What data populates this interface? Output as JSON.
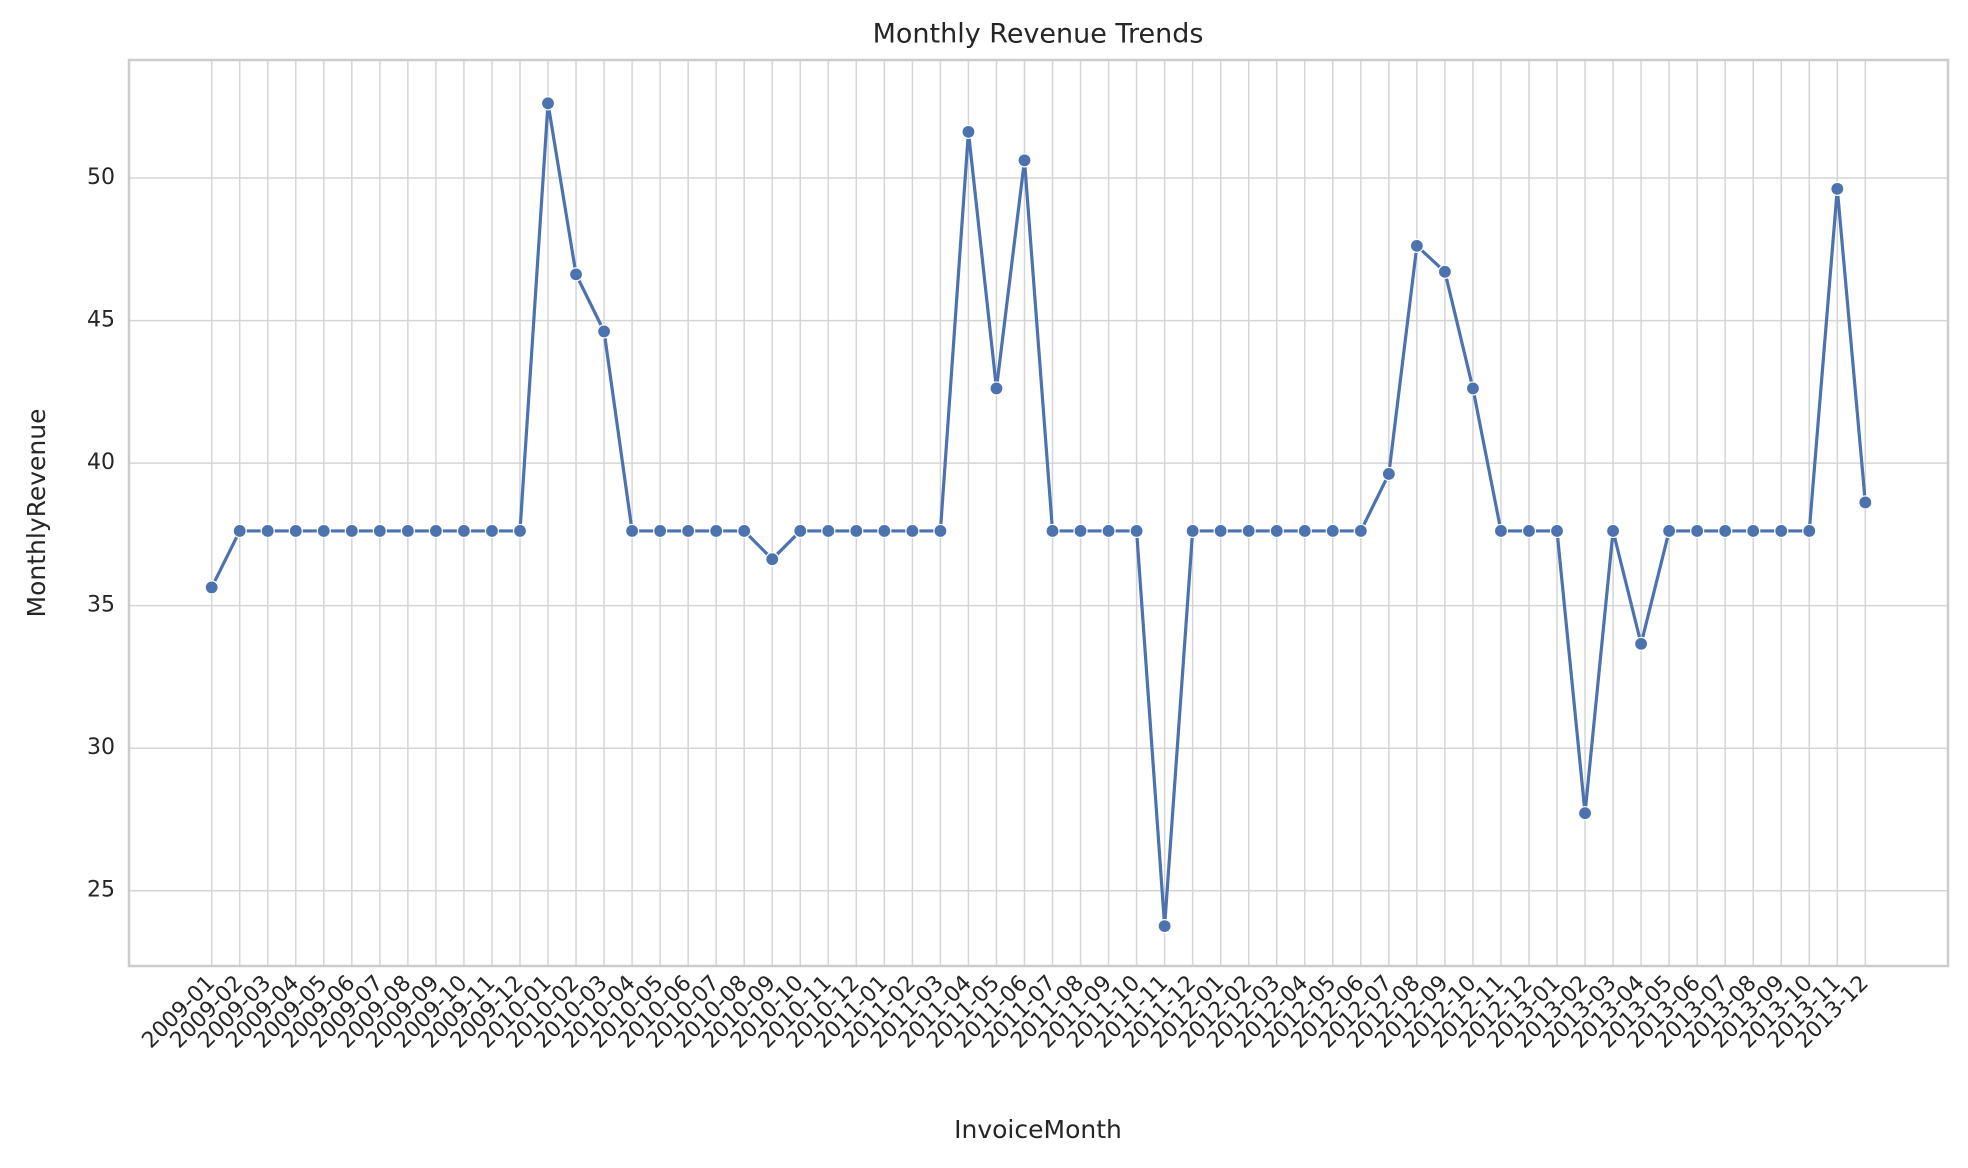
{
  "chart_data": {
    "type": "line",
    "title": "Monthly Revenue Trends",
    "x_label": "InvoiceMonth",
    "y_label": "MonthlyRevenue",
    "categories": [
      "2009-01",
      "2009-02",
      "2009-03",
      "2009-04",
      "2009-05",
      "2009-06",
      "2009-07",
      "2009-08",
      "2009-09",
      "2009-10",
      "2009-11",
      "2009-12",
      "2010-01",
      "2010-02",
      "2010-03",
      "2010-04",
      "2010-05",
      "2010-06",
      "2010-07",
      "2010-08",
      "2010-09",
      "2010-10",
      "2010-11",
      "2010-12",
      "2011-01",
      "2011-02",
      "2011-03",
      "2011-04",
      "2011-05",
      "2011-06",
      "2011-07",
      "2011-08",
      "2011-09",
      "2011-10",
      "2011-11",
      "2011-12",
      "2012-01",
      "2012-02",
      "2012-03",
      "2012-04",
      "2012-05",
      "2012-06",
      "2012-07",
      "2012-08",
      "2012-09",
      "2012-10",
      "2012-11",
      "2012-12",
      "2013-01",
      "2013-02",
      "2013-03",
      "2013-04",
      "2013-05",
      "2013-06",
      "2013-07",
      "2013-08",
      "2013-09",
      "2013-10",
      "2013-11",
      "2013-12"
    ],
    "values": [
      35.64,
      37.62,
      37.62,
      37.62,
      37.62,
      37.62,
      37.62,
      37.62,
      37.62,
      37.62,
      37.62,
      37.62,
      52.62,
      46.62,
      44.62,
      37.62,
      37.62,
      37.62,
      37.62,
      37.62,
      36.63,
      37.62,
      37.62,
      37.62,
      37.62,
      37.62,
      37.62,
      51.62,
      42.62,
      50.62,
      37.62,
      37.62,
      37.62,
      37.62,
      23.76,
      37.62,
      37.62,
      37.62,
      37.62,
      37.62,
      37.62,
      37.62,
      39.62,
      47.62,
      46.71,
      42.62,
      37.62,
      37.62,
      37.62,
      27.72,
      37.62,
      33.66,
      37.62,
      37.62,
      37.62,
      37.62,
      37.62,
      37.62,
      49.62,
      38.62
    ],
    "color": "#4c72b0",
    "ylim": [
      22.36,
      54.14
    ],
    "yticks": [
      25,
      30,
      35,
      40,
      45,
      50
    ],
    "grid": true
  }
}
